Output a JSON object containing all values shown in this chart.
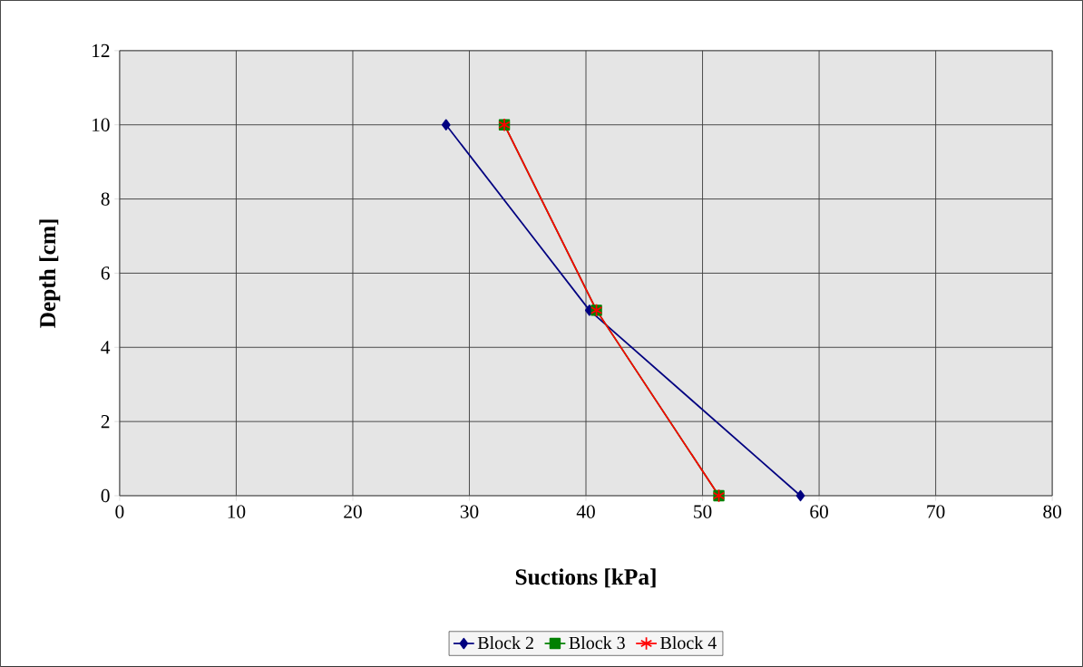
{
  "chart_data": {
    "type": "line",
    "xlabel": "Suctions [kPa]",
    "ylabel": "Depth [cm]",
    "xlim": [
      0,
      80
    ],
    "xticks": [
      0,
      10,
      20,
      30,
      40,
      50,
      60,
      70,
      80
    ],
    "ylim": [
      0,
      12
    ],
    "yticks": [
      0,
      2,
      4,
      6,
      8,
      10,
      12
    ],
    "grid": true,
    "legend": "bottom",
    "line_style": "solid",
    "series": [
      {
        "name": "Block 2",
        "color": "#000080",
        "marker": "diamond",
        "x": [
          28.0,
          40.3,
          58.4
        ],
        "values": [
          10,
          5,
          0
        ]
      },
      {
        "name": "Block 3",
        "color": "#008000",
        "marker": "square",
        "x": [
          33.0,
          40.9,
          51.4
        ],
        "values": [
          10,
          5,
          0
        ]
      },
      {
        "name": "Block 4",
        "color": "#ff0000",
        "marker": "cross",
        "x": [
          33.0,
          40.9,
          51.4
        ],
        "values": [
          10,
          5,
          0
        ]
      }
    ]
  }
}
